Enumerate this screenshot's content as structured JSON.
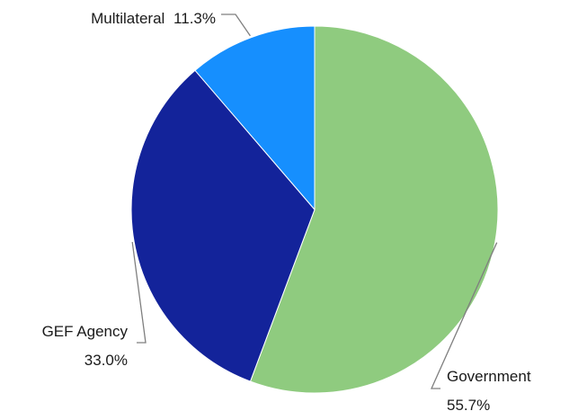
{
  "chart_data": {
    "type": "pie",
    "title": "",
    "start_angle_deg": 0,
    "direction": "clockwise",
    "slices": [
      {
        "label": "Government",
        "value": 55.7,
        "value_label": "55.7%",
        "color": "#8fcb7f"
      },
      {
        "label": "GEF Agency",
        "value": 33.0,
        "value_label": "33.0%",
        "color": "#13239a"
      },
      {
        "label": "Multilateral",
        "value": 11.3,
        "value_label": "11.3%",
        "color": "#168ffe"
      }
    ],
    "label_format": "name and percent"
  }
}
